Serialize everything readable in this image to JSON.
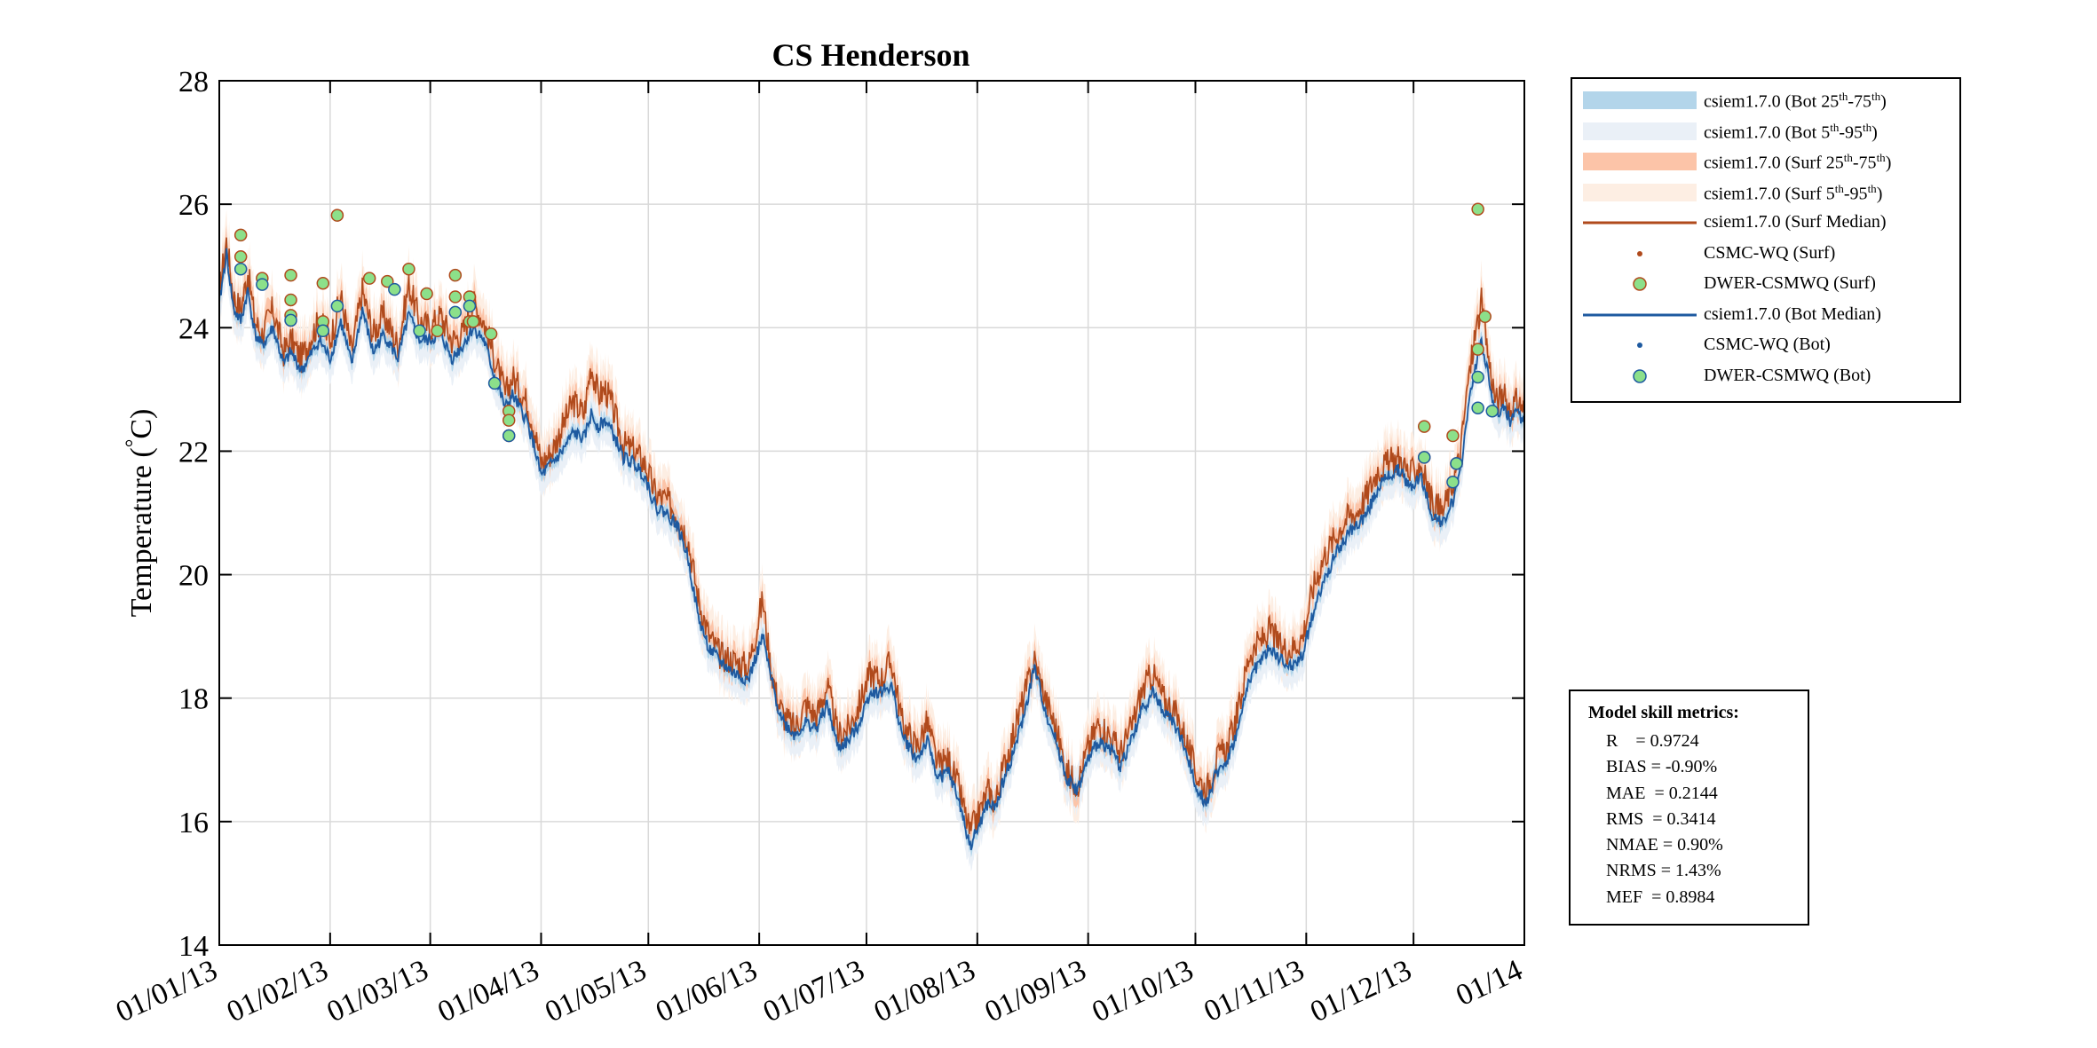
{
  "chart_data": {
    "type": "line",
    "title": "CS Henderson",
    "ylabel": "Temperature (°C)",
    "ylabel_main": "Temperature (",
    "ylabel_deg": "°",
    "ylabel_unit": "C)",
    "xlabel": "",
    "ylim": [
      14,
      28
    ],
    "y_ticks": [
      14,
      16,
      18,
      20,
      22,
      24,
      26,
      28
    ],
    "x_ticks": [
      {
        "label": "01/01/13",
        "day": 0
      },
      {
        "label": "01/02/13",
        "day": 31
      },
      {
        "label": "01/03/13",
        "day": 59
      },
      {
        "label": "01/04/13",
        "day": 90
      },
      {
        "label": "01/05/13",
        "day": 120
      },
      {
        "label": "01/06/13",
        "day": 151
      },
      {
        "label": "01/07/13",
        "day": 181
      },
      {
        "label": "01/08/13",
        "day": 212
      },
      {
        "label": "01/09/13",
        "day": 243
      },
      {
        "label": "01/10/13",
        "day": 273
      },
      {
        "label": "01/11/13",
        "day": 304
      },
      {
        "label": "01/12/13",
        "day": 334
      },
      {
        "label": "01/14",
        "day": 365
      }
    ],
    "grid": true,
    "legend_position": "outside-right",
    "colors": {
      "bot_25_75": "#b3d5ea",
      "bot_5_95": "#eaf0f7",
      "surf_25_75": "#fcc4a8",
      "surf_5_95": "#fdeee3",
      "surf_median": "#b04a1c",
      "bot_median": "#1e5aa0",
      "dwer_fill": "#8ce08a"
    },
    "series": [
      {
        "name": "csiem1.7.0 (Surf Median)",
        "x": [
          0,
          2,
          4,
          6,
          8,
          10,
          12,
          15,
          18,
          20,
          23,
          26,
          28,
          31,
          34,
          37,
          40,
          43,
          46,
          50,
          53,
          56,
          59,
          62,
          65,
          68,
          71,
          74,
          77,
          80,
          82,
          84,
          86,
          88,
          90,
          93,
          96,
          99,
          102,
          104,
          106,
          108,
          110,
          113,
          116,
          119,
          122,
          125,
          128,
          131,
          134,
          137,
          140,
          144,
          148,
          152,
          154,
          156,
          158,
          161,
          164,
          167,
          170,
          173,
          176,
          179,
          182,
          185,
          188,
          191,
          195,
          198,
          201,
          204,
          207,
          210,
          213,
          215,
          217,
          219,
          222,
          225,
          228,
          231,
          234,
          237,
          240,
          243,
          246,
          249,
          252,
          255,
          258,
          261,
          264,
          267,
          270,
          273,
          276,
          279,
          282,
          285,
          288,
          291,
          294,
          297,
          300,
          303,
          306,
          309,
          312,
          315,
          318,
          321,
          324,
          327,
          330,
          333,
          336,
          339,
          342,
          345,
          347,
          349,
          351,
          353,
          355,
          357,
          359,
          361,
          363,
          365
        ],
        "y": [
          24.6,
          25.4,
          24.5,
          24.3,
          24.9,
          24.1,
          23.9,
          24.3,
          23.6,
          23.8,
          23.5,
          23.9,
          24.1,
          23.8,
          24.5,
          23.6,
          24.6,
          23.9,
          24.2,
          23.7,
          24.7,
          24.1,
          24.0,
          24.2,
          23.8,
          23.9,
          24.4,
          24.1,
          23.5,
          22.9,
          23.2,
          23.0,
          22.8,
          22.4,
          21.8,
          22.0,
          22.4,
          22.8,
          22.6,
          23.4,
          22.9,
          23.0,
          22.7,
          22.1,
          22.0,
          21.8,
          21.3,
          21.2,
          21.0,
          20.6,
          19.6,
          19.0,
          18.7,
          18.6,
          18.5,
          19.6,
          18.6,
          18.0,
          17.7,
          17.5,
          17.9,
          17.7,
          18.2,
          17.4,
          17.5,
          17.9,
          18.4,
          18.3,
          18.6,
          17.6,
          17.2,
          17.6,
          16.9,
          17.0,
          16.5,
          15.8,
          16.2,
          16.5,
          16.3,
          16.8,
          17.4,
          18.0,
          18.6,
          18.0,
          17.5,
          16.8,
          16.6,
          17.2,
          17.6,
          17.4,
          17.1,
          17.5,
          18.1,
          18.4,
          18.0,
          17.8,
          17.4,
          16.8,
          16.5,
          17.0,
          17.2,
          17.8,
          18.7,
          18.9,
          19.1,
          18.8,
          18.8,
          19.0,
          19.8,
          20.3,
          20.6,
          20.9,
          21.0,
          21.3,
          21.7,
          21.8,
          21.9,
          21.6,
          21.8,
          21.2,
          21.0,
          21.5,
          21.9,
          23.0,
          23.8,
          24.4,
          23.5,
          22.8,
          22.9,
          22.7,
          22.8,
          22.7
        ]
      },
      {
        "name": "csiem1.7.0 (Bot Median)",
        "x": [
          0,
          2,
          4,
          6,
          8,
          10,
          12,
          15,
          18,
          20,
          23,
          26,
          28,
          31,
          34,
          37,
          40,
          43,
          46,
          50,
          53,
          56,
          59,
          62,
          65,
          68,
          71,
          74,
          77,
          80,
          82,
          84,
          86,
          88,
          90,
          93,
          96,
          99,
          102,
          104,
          106,
          108,
          110,
          113,
          116,
          119,
          122,
          125,
          128,
          131,
          134,
          137,
          140,
          144,
          148,
          152,
          154,
          156,
          158,
          161,
          164,
          167,
          170,
          173,
          176,
          179,
          182,
          185,
          188,
          191,
          195,
          198,
          201,
          204,
          207,
          210,
          213,
          215,
          217,
          219,
          222,
          225,
          228,
          231,
          234,
          237,
          240,
          243,
          246,
          249,
          252,
          255,
          258,
          261,
          264,
          267,
          270,
          273,
          276,
          279,
          282,
          285,
          288,
          291,
          294,
          297,
          300,
          303,
          306,
          309,
          312,
          315,
          318,
          321,
          324,
          327,
          330,
          333,
          336,
          339,
          342,
          345,
          347,
          349,
          351,
          353,
          355,
          357,
          359,
          361,
          363,
          365
        ],
        "y": [
          24.4,
          25.2,
          24.3,
          24.1,
          24.6,
          23.9,
          23.7,
          24.0,
          23.4,
          23.6,
          23.3,
          23.6,
          23.8,
          23.5,
          24.1,
          23.4,
          24.3,
          23.6,
          23.9,
          23.5,
          24.2,
          23.8,
          23.8,
          23.9,
          23.5,
          23.7,
          24.0,
          23.8,
          23.2,
          22.7,
          22.9,
          22.7,
          22.5,
          22.1,
          21.6,
          21.8,
          22.0,
          22.3,
          22.2,
          22.6,
          22.4,
          22.5,
          22.3,
          21.9,
          21.8,
          21.6,
          21.1,
          21.0,
          20.8,
          20.3,
          19.3,
          18.8,
          18.6,
          18.4,
          18.3,
          19.0,
          18.4,
          17.9,
          17.6,
          17.4,
          17.6,
          17.5,
          17.9,
          17.2,
          17.3,
          17.6,
          18.1,
          18.1,
          18.2,
          17.4,
          17.0,
          17.3,
          16.7,
          16.8,
          16.3,
          15.6,
          16.0,
          16.3,
          16.2,
          16.6,
          17.1,
          17.7,
          18.5,
          17.8,
          17.3,
          16.7,
          16.5,
          17.0,
          17.3,
          17.2,
          16.9,
          17.3,
          17.8,
          18.1,
          17.8,
          17.6,
          17.2,
          16.6,
          16.3,
          16.8,
          17.0,
          17.5,
          18.3,
          18.6,
          18.8,
          18.6,
          18.5,
          18.7,
          19.4,
          19.9,
          20.3,
          20.6,
          20.8,
          21.0,
          21.4,
          21.6,
          21.7,
          21.4,
          21.6,
          21.0,
          20.8,
          21.2,
          21.6,
          22.6,
          23.3,
          23.8,
          23.2,
          22.6,
          22.7,
          22.5,
          22.6,
          22.5
        ]
      },
      {
        "name": "DWER-CSMWQ (Surf)",
        "x": [
          6,
          6,
          12,
          20,
          20,
          20,
          29,
          29,
          33,
          42,
          47,
          53,
          58,
          61,
          66,
          66,
          70,
          70,
          71,
          76,
          81,
          81,
          81,
          337,
          337,
          345,
          346,
          352,
          352,
          354
        ],
        "y": [
          25.5,
          25.15,
          24.8,
          24.85,
          24.45,
          24.2,
          24.72,
          24.1,
          25.82,
          24.8,
          24.75,
          24.95,
          24.55,
          23.95,
          24.85,
          24.5,
          24.5,
          24.1,
          24.1,
          23.9,
          22.65,
          22.5,
          22.25,
          22.4,
          21.9,
          22.25,
          21.8,
          25.92,
          23.65,
          24.18
        ],
        "marker": "circle"
      },
      {
        "name": "DWER-CSMWQ (Bot)",
        "x": [
          6,
          12,
          20,
          29,
          33,
          49,
          56,
          66,
          70,
          77,
          81,
          337,
          345,
          346,
          352,
          352,
          356
        ],
        "y": [
          24.95,
          24.7,
          24.12,
          23.95,
          24.35,
          24.62,
          23.95,
          24.25,
          24.35,
          23.1,
          22.25,
          21.9,
          21.5,
          21.8,
          23.2,
          22.7,
          22.65
        ],
        "marker": "circle"
      },
      {
        "name": "CSMC-WQ (Surf)",
        "x": [],
        "y": []
      },
      {
        "name": "CSMC-WQ (Bot)",
        "x": [],
        "y": []
      }
    ],
    "band_spread": {
      "surf_25_75": 0.2,
      "surf_5_95": 0.45,
      "bot_25_75": 0.12,
      "bot_5_95": 0.35
    }
  },
  "legend": {
    "items": [
      {
        "pre": "csiem1.7.0 (Bot 25",
        "sup1": "th",
        "mid": "-75",
        "sup2": "th",
        "post": ")",
        "kind": "band",
        "color": "#b3d5ea"
      },
      {
        "pre": "csiem1.7.0 (Bot 5",
        "sup1": "th",
        "mid": "-95",
        "sup2": "th",
        "post": ")",
        "kind": "band",
        "color": "#eaf0f7"
      },
      {
        "pre": "csiem1.7.0 (Surf 25",
        "sup1": "th",
        "mid": "-75",
        "sup2": "th",
        "post": ")",
        "kind": "band",
        "color": "#fcc4a8"
      },
      {
        "pre": "csiem1.7.0 (Surf 5",
        "sup1": "th",
        "mid": "-95",
        "sup2": "th",
        "post": ")",
        "kind": "band",
        "color": "#fdeee3"
      },
      {
        "pre": "csiem1.7.0 (Surf Median)",
        "sup1": "",
        "mid": "",
        "sup2": "",
        "post": "",
        "kind": "line",
        "color": "#b04a1c"
      },
      {
        "pre": "CSMC-WQ (Surf)",
        "sup1": "",
        "mid": "",
        "sup2": "",
        "post": "",
        "kind": "dot",
        "color": "#b04a1c"
      },
      {
        "pre": "DWER-CSMWQ (Surf)",
        "sup1": "",
        "mid": "",
        "sup2": "",
        "post": "",
        "kind": "circle",
        "color": "#8ce08a",
        "edge": "#b04a1c"
      },
      {
        "pre": "csiem1.7.0 (Bot Median)",
        "sup1": "",
        "mid": "",
        "sup2": "",
        "post": "",
        "kind": "line",
        "color": "#1e5aa0"
      },
      {
        "pre": "CSMC-WQ (Bot)",
        "sup1": "",
        "mid": "",
        "sup2": "",
        "post": "",
        "kind": "dot",
        "color": "#1e5aa0"
      },
      {
        "pre": "DWER-CSMWQ (Bot)",
        "sup1": "",
        "mid": "",
        "sup2": "",
        "post": "",
        "kind": "circle",
        "color": "#8ce08a",
        "edge": "#1e5aa0"
      }
    ]
  },
  "metrics": {
    "title": "Model skill metrics:",
    "lines": [
      "R    = 0.9724",
      "BIAS = -0.90%",
      "MAE  = 0.2144",
      "RMS  = 0.3414",
      "NMAE = 0.90%",
      "NRMS = 1.43%",
      "MEF  = 0.8984"
    ]
  }
}
